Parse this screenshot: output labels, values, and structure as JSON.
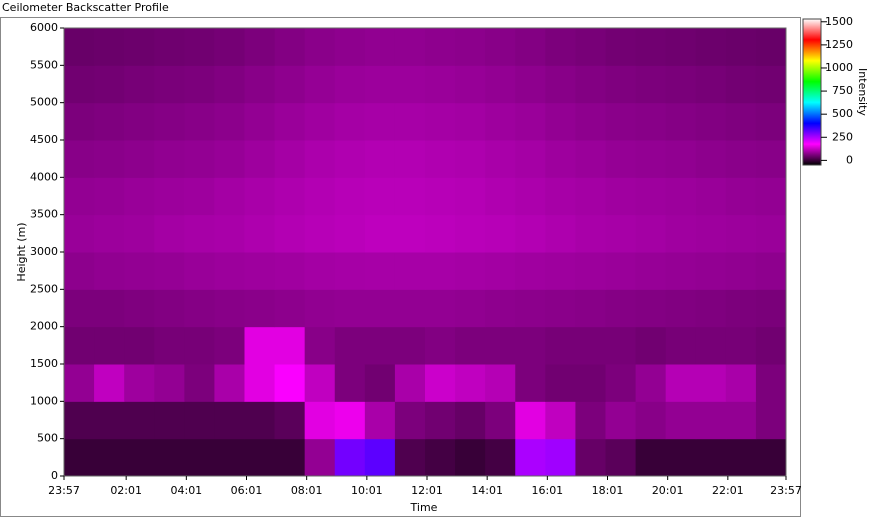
{
  "chart_data": {
    "type": "heatmap",
    "title": "Ceilometer Backscatter Profile",
    "x_label": "Time",
    "y_label": "Height (m)",
    "colorbar_label": "Intensity",
    "xlim": [
      0,
      1440
    ],
    "xticks": [
      {
        "value": 0,
        "label": "23:57"
      },
      {
        "value": 124,
        "label": "02:01"
      },
      {
        "value": 244,
        "label": "04:01"
      },
      {
        "value": 364,
        "label": "06:01"
      },
      {
        "value": 484,
        "label": "08:01"
      },
      {
        "value": 604,
        "label": "10:01"
      },
      {
        "value": 724,
        "label": "12:01"
      },
      {
        "value": 844,
        "label": "14:01"
      },
      {
        "value": 964,
        "label": "16:01"
      },
      {
        "value": 1084,
        "label": "18:01"
      },
      {
        "value": 1204,
        "label": "20:01"
      },
      {
        "value": 1324,
        "label": "22:01"
      },
      {
        "value": 1440,
        "label": "23:57"
      }
    ],
    "ylim": [
      0,
      6000
    ],
    "yticks": [
      0,
      500,
      1000,
      1500,
      2000,
      2500,
      3000,
      3500,
      4000,
      4500,
      5000,
      5500,
      6000
    ],
    "clim": [
      -50,
      1530
    ],
    "cticks": [
      0,
      250,
      500,
      750,
      1000,
      1250,
      1500
    ],
    "colorscale": [
      "#000000",
      "#ff00ff",
      "#0000ff",
      "#00ffff",
      "#00ff00",
      "#ffff00",
      "#ff0000",
      "#ffffff"
    ],
    "z": [
      [
        0,
        0,
        0,
        0,
        0,
        0,
        0,
        0,
        80,
        300,
        320,
        20,
        10,
        0,
        10,
        250,
        260,
        40,
        30,
        0,
        0,
        0,
        0,
        0
      ],
      [
        20,
        20,
        20,
        20,
        20,
        20,
        20,
        30,
        150,
        160,
        100,
        60,
        50,
        40,
        60,
        150,
        120,
        60,
        80,
        70,
        80,
        80,
        80,
        60
      ],
      [
        80,
        120,
        90,
        80,
        60,
        100,
        150,
        180,
        120,
        60,
        50,
        100,
        130,
        120,
        110,
        60,
        50,
        50,
        60,
        80,
        110,
        110,
        100,
        60
      ],
      [
        50,
        50,
        50,
        55,
        55,
        60,
        150,
        150,
        70,
        60,
        60,
        60,
        65,
        60,
        60,
        60,
        55,
        55,
        55,
        50,
        55,
        55,
        55,
        50
      ],
      [
        60,
        60,
        62,
        65,
        68,
        70,
        72,
        75,
        78,
        80,
        80,
        80,
        80,
        78,
        76,
        74,
        72,
        70,
        68,
        66,
        64,
        62,
        60,
        58
      ],
      [
        75,
        78,
        80,
        82,
        85,
        88,
        90,
        92,
        95,
        97,
        98,
        98,
        98,
        96,
        94,
        92,
        90,
        88,
        86,
        84,
        82,
        80,
        78,
        76
      ],
      [
        85,
        88,
        90,
        95,
        98,
        100,
        104,
        108,
        112,
        115,
        118,
        118,
        116,
        114,
        112,
        108,
        104,
        100,
        98,
        95,
        92,
        90,
        88,
        86
      ],
      [
        80,
        82,
        85,
        88,
        90,
        95,
        100,
        104,
        108,
        112,
        114,
        114,
        112,
        110,
        106,
        102,
        98,
        95,
        92,
        90,
        88,
        85,
        82,
        80
      ],
      [
        70,
        72,
        75,
        78,
        80,
        84,
        90,
        96,
        102,
        106,
        108,
        108,
        106,
        104,
        100,
        96,
        90,
        86,
        82,
        80,
        78,
        75,
        72,
        70
      ],
      [
        60,
        62,
        65,
        68,
        70,
        74,
        80,
        86,
        92,
        96,
        98,
        98,
        96,
        94,
        90,
        86,
        80,
        76,
        72,
        70,
        68,
        65,
        62,
        60
      ],
      [
        50,
        52,
        55,
        58,
        60,
        64,
        70,
        76,
        82,
        86,
        88,
        88,
        86,
        84,
        80,
        76,
        70,
        66,
        62,
        60,
        58,
        55,
        52,
        50
      ],
      [
        42,
        44,
        46,
        48,
        50,
        54,
        60,
        66,
        72,
        76,
        78,
        78,
        76,
        74,
        70,
        66,
        60,
        56,
        52,
        50,
        48,
        46,
        44,
        42
      ]
    ]
  }
}
